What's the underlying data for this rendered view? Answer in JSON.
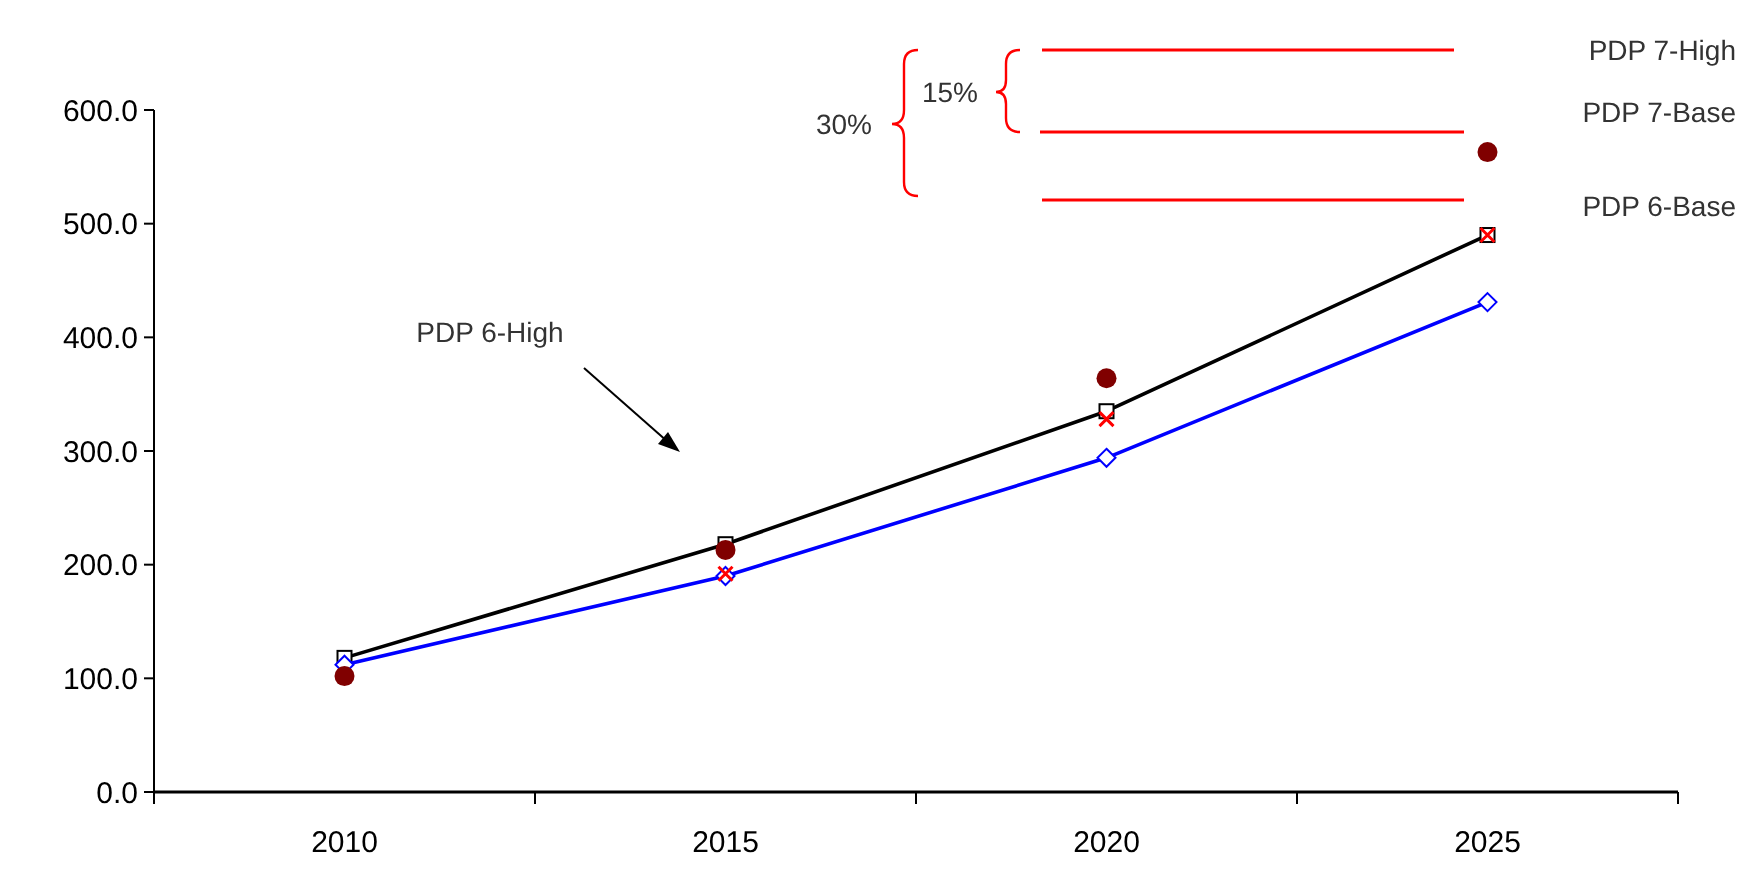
{
  "chart_data": {
    "type": "line",
    "categories": [
      "2010",
      "2015",
      "2020",
      "2025"
    ],
    "ylim": [
      0,
      600
    ],
    "yticks": [
      {
        "value": 0,
        "label": "0.0"
      },
      {
        "value": 100,
        "label": "100.0"
      },
      {
        "value": 200,
        "label": "200.0"
      },
      {
        "value": 300,
        "label": "300.0"
      },
      {
        "value": 400,
        "label": "400.0"
      },
      {
        "value": 500,
        "label": "500.0"
      },
      {
        "value": 600,
        "label": "600.0"
      }
    ],
    "grid": false,
    "series": [
      {
        "type": "line",
        "color": "#000000",
        "marker": "square",
        "values": [
          118,
          218,
          335,
          490
        ]
      },
      {
        "type": "line",
        "color": "#0000ff",
        "marker": "diamond",
        "values": [
          112,
          190,
          294,
          431
        ]
      },
      {
        "type": "scatter",
        "color": "#ff0000",
        "marker": "cross",
        "values": [
          null,
          192,
          328,
          490
        ]
      },
      {
        "type": "scatter",
        "color": "#800000",
        "marker": "circle",
        "values": [
          102,
          213,
          364,
          563
        ]
      }
    ],
    "annotations": [
      "PDP 7-High",
      "PDP 7-Base",
      "PDP 6-Base",
      "15%",
      "30%",
      "PDP 6-High"
    ]
  }
}
